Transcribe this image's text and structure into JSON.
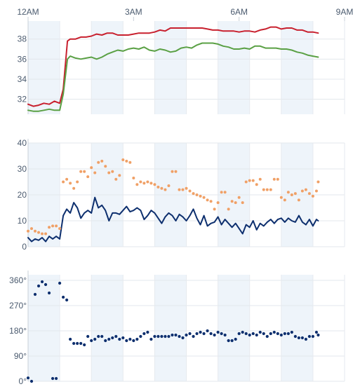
{
  "chart_data": [
    {
      "type": "line",
      "x_unit": "hours",
      "x_ticks": [
        {
          "x": 0,
          "label": "12AM"
        },
        {
          "x": 3,
          "label": "3AM"
        },
        {
          "x": 6,
          "label": "6AM"
        },
        {
          "x": 9,
          "label": "9AM"
        }
      ],
      "xlim": [
        0,
        9
      ],
      "ylim": [
        30.5,
        39.8
      ],
      "y_ticks": [
        {
          "v": 32,
          "label": "32"
        },
        {
          "v": 34,
          "label": "34"
        },
        {
          "v": 36,
          "label": "36"
        },
        {
          "v": 38,
          "label": "38"
        }
      ],
      "bands_hours": [
        [
          0,
          0.9
        ],
        [
          1.8,
          2.7
        ],
        [
          3.6,
          4.5
        ],
        [
          5.4,
          6.3
        ],
        [
          7.2,
          8.1
        ]
      ],
      "series": [
        {
          "color": "#c8202e",
          "x": [
            0,
            0.15,
            0.3,
            0.45,
            0.6,
            0.75,
            0.9,
            1.0,
            1.12,
            1.2,
            1.35,
            1.5,
            1.65,
            1.8,
            1.95,
            2.1,
            2.25,
            2.4,
            2.55,
            2.7,
            2.85,
            3.0,
            3.15,
            3.3,
            3.45,
            3.6,
            3.75,
            3.9,
            4.05,
            4.2,
            4.35,
            4.5,
            4.65,
            4.8,
            4.95,
            5.1,
            5.25,
            5.4,
            5.55,
            5.7,
            5.85,
            6.0,
            6.15,
            6.3,
            6.45,
            6.6,
            6.75,
            6.9,
            7.05,
            7.2,
            7.35,
            7.5,
            7.65,
            7.8,
            7.95,
            8.1,
            8.25
          ],
          "values": [
            31.5,
            31.3,
            31.4,
            31.6,
            31.5,
            31.8,
            31.6,
            33.0,
            37.8,
            38.0,
            38.0,
            38.2,
            38.2,
            38.3,
            38.5,
            38.4,
            38.6,
            38.6,
            38.4,
            38.4,
            38.4,
            38.5,
            38.6,
            38.6,
            38.6,
            38.7,
            38.9,
            38.8,
            39.1,
            39.1,
            39.1,
            39.1,
            39.1,
            39.1,
            39.1,
            39.0,
            38.9,
            38.9,
            38.8,
            38.8,
            38.8,
            38.7,
            38.8,
            38.8,
            38.7,
            38.9,
            39.0,
            39.2,
            39.2,
            39.0,
            39.1,
            39.1,
            38.9,
            38.9,
            38.7,
            38.7,
            38.6
          ]
        },
        {
          "color": "#5aa044",
          "x": [
            0,
            0.15,
            0.3,
            0.45,
            0.6,
            0.75,
            0.9,
            1.0,
            1.12,
            1.2,
            1.35,
            1.5,
            1.65,
            1.8,
            1.95,
            2.1,
            2.25,
            2.4,
            2.55,
            2.7,
            2.85,
            3.0,
            3.15,
            3.3,
            3.45,
            3.6,
            3.75,
            3.9,
            4.05,
            4.2,
            4.35,
            4.5,
            4.65,
            4.8,
            4.95,
            5.1,
            5.25,
            5.4,
            5.55,
            5.7,
            5.85,
            6.0,
            6.15,
            6.3,
            6.45,
            6.6,
            6.75,
            6.9,
            7.05,
            7.2,
            7.35,
            7.5,
            7.65,
            7.8,
            7.95,
            8.1,
            8.25
          ],
          "values": [
            30.9,
            30.8,
            30.8,
            30.9,
            31.0,
            30.9,
            30.9,
            32.5,
            36.0,
            36.3,
            36.1,
            36.0,
            36.1,
            36.2,
            36.0,
            36.2,
            36.5,
            36.7,
            36.9,
            36.8,
            37.0,
            37.1,
            37.0,
            37.2,
            36.9,
            36.8,
            37.0,
            36.9,
            36.7,
            36.8,
            37.1,
            37.2,
            37.1,
            37.4,
            37.6,
            37.6,
            37.6,
            37.5,
            37.3,
            37.2,
            37.0,
            37.0,
            37.1,
            37.0,
            37.3,
            37.3,
            37.1,
            37.1,
            37.1,
            37.0,
            37.0,
            36.9,
            36.7,
            36.6,
            36.4,
            36.3,
            36.2
          ]
        }
      ]
    },
    {
      "type": "line",
      "x_unit": "hours",
      "xlim": [
        0,
        9
      ],
      "ylim": [
        0,
        40
      ],
      "y_ticks": [
        {
          "v": 0,
          "label": "0"
        },
        {
          "v": 10,
          "label": "10"
        },
        {
          "v": 20,
          "label": "20"
        },
        {
          "v": 30,
          "label": "30"
        },
        {
          "v": 40,
          "label": "40"
        }
      ],
      "bands_hours": [
        [
          0,
          0.9
        ],
        [
          1.8,
          2.7
        ],
        [
          3.6,
          4.5
        ],
        [
          5.4,
          6.3
        ],
        [
          7.2,
          8.1
        ]
      ],
      "series": [
        {
          "color": "#0d2f6e",
          "style": "line",
          "x": [
            0,
            0.1,
            0.2,
            0.3,
            0.4,
            0.5,
            0.6,
            0.7,
            0.8,
            0.9,
            1.0,
            1.1,
            1.2,
            1.3,
            1.4,
            1.5,
            1.6,
            1.7,
            1.8,
            1.9,
            2.0,
            2.1,
            2.2,
            2.3,
            2.4,
            2.5,
            2.6,
            2.7,
            2.8,
            2.9,
            3.0,
            3.1,
            3.2,
            3.3,
            3.4,
            3.5,
            3.6,
            3.7,
            3.8,
            3.9,
            4.0,
            4.1,
            4.2,
            4.3,
            4.4,
            4.5,
            4.6,
            4.7,
            4.8,
            4.9,
            5.0,
            5.1,
            5.2,
            5.3,
            5.4,
            5.5,
            5.6,
            5.7,
            5.8,
            5.9,
            6.0,
            6.1,
            6.2,
            6.3,
            6.4,
            6.5,
            6.6,
            6.7,
            6.8,
            6.9,
            7.0,
            7.1,
            7.2,
            7.3,
            7.4,
            7.5,
            7.6,
            7.7,
            7.8,
            7.9,
            8.0,
            8.1,
            8.2,
            8.25
          ],
          "values": [
            3.5,
            2.0,
            3.0,
            2.5,
            3.5,
            2.0,
            4.0,
            3.0,
            4.0,
            3.0,
            12.0,
            14.5,
            13.0,
            17.0,
            15.0,
            11.0,
            13.0,
            14.0,
            13.0,
            19.0,
            15.0,
            16.0,
            14.0,
            10.0,
            13.0,
            13.0,
            12.5,
            14.0,
            15.5,
            13.5,
            14.0,
            15.0,
            14.0,
            10.5,
            12.0,
            14.0,
            13.0,
            11.0,
            9.0,
            11.5,
            13.0,
            12.0,
            10.0,
            12.5,
            11.5,
            10.0,
            12.0,
            14.5,
            11.0,
            8.5,
            12.0,
            8.0,
            9.0,
            9.5,
            11.5,
            8.5,
            10.5,
            9.0,
            7.5,
            9.0,
            7.0,
            5.0,
            8.5,
            7.5,
            10.0,
            6.5,
            9.0,
            8.0,
            9.5,
            10.5,
            9.0,
            10.5,
            11.0,
            9.5,
            11.0,
            10.0,
            9.5,
            12.0,
            9.5,
            8.5,
            10.5,
            8.0,
            10.5,
            10.0
          ]
        },
        {
          "color": "#f0a066",
          "style": "dots",
          "x": [
            0,
            0.1,
            0.2,
            0.3,
            0.4,
            0.5,
            0.6,
            0.7,
            0.8,
            0.9,
            1.0,
            1.1,
            1.2,
            1.3,
            1.4,
            1.5,
            1.6,
            1.7,
            1.8,
            1.9,
            2.0,
            2.1,
            2.2,
            2.3,
            2.4,
            2.5,
            2.6,
            2.7,
            2.8,
            2.9,
            3.0,
            3.1,
            3.2,
            3.3,
            3.4,
            3.5,
            3.6,
            3.7,
            3.8,
            3.9,
            4.0,
            4.1,
            4.2,
            4.3,
            4.4,
            4.5,
            4.6,
            4.7,
            4.8,
            4.9,
            5.0,
            5.1,
            5.2,
            5.3,
            5.4,
            5.5,
            5.6,
            5.7,
            5.8,
            5.9,
            6.0,
            6.1,
            6.2,
            6.3,
            6.4,
            6.5,
            6.6,
            6.7,
            6.8,
            6.9,
            7.0,
            7.1,
            7.2,
            7.3,
            7.4,
            7.5,
            7.6,
            7.7,
            7.8,
            7.9,
            8.0,
            8.1,
            8.2,
            8.25
          ],
          "values": [
            6.0,
            7.0,
            6.0,
            5.5,
            5.0,
            5.0,
            7.5,
            8.0,
            8.0,
            7.0,
            25.0,
            26.0,
            24.5,
            22.5,
            25.0,
            29.0,
            29.0,
            27.0,
            30.5,
            28.5,
            32.5,
            33.0,
            31.0,
            28.5,
            29.0,
            26.0,
            27.5,
            33.5,
            33.0,
            32.5,
            26.5,
            24.0,
            25.0,
            24.5,
            25.0,
            24.5,
            24.0,
            23.0,
            22.5,
            22.0,
            23.5,
            29.0,
            29.0,
            22.0,
            22.0,
            22.5,
            21.5,
            20.5,
            20.0,
            19.5,
            19.0,
            18.0,
            17.5,
            14.5,
            17.0,
            21.0,
            21.0,
            14.5,
            17.5,
            17.0,
            19.0,
            17.0,
            25.0,
            25.5,
            25.5,
            24.0,
            26.0,
            22.0,
            22.0,
            22.0,
            26.0,
            26.0,
            19.0,
            18.0,
            21.0,
            20.0,
            20.5,
            18.0,
            21.5,
            22.0,
            20.5,
            19.5,
            21.5,
            25.0
          ]
        }
      ]
    },
    {
      "type": "scatter",
      "x_unit": "hours",
      "xlim": [
        0,
        9
      ],
      "ylim": [
        0,
        380
      ],
      "y_ticks": [
        {
          "v": 0,
          "label": "0°"
        },
        {
          "v": 90,
          "label": "90°"
        },
        {
          "v": 180,
          "label": "180°"
        },
        {
          "v": 270,
          "label": "270°"
        },
        {
          "v": 360,
          "label": "360°"
        }
      ],
      "bands_hours": [
        [
          0,
          0.9
        ],
        [
          1.8,
          2.7
        ],
        [
          3.6,
          4.5
        ],
        [
          5.4,
          6.3
        ],
        [
          7.2,
          8.1
        ]
      ],
      "series": [
        {
          "color": "#0d2f6e",
          "x": [
            0.0,
            0.1,
            0.2,
            0.3,
            0.4,
            0.5,
            0.6,
            0.7,
            0.8,
            0.9,
            1.0,
            1.1,
            1.2,
            1.3,
            1.4,
            1.5,
            1.6,
            1.7,
            1.8,
            1.9,
            2.0,
            2.1,
            2.2,
            2.3,
            2.4,
            2.5,
            2.6,
            2.7,
            2.8,
            2.9,
            3.0,
            3.1,
            3.2,
            3.3,
            3.4,
            3.5,
            3.6,
            3.7,
            3.8,
            3.9,
            4.0,
            4.1,
            4.2,
            4.3,
            4.4,
            4.5,
            4.6,
            4.7,
            4.8,
            4.9,
            5.0,
            5.1,
            5.2,
            5.3,
            5.4,
            5.5,
            5.6,
            5.7,
            5.8,
            5.9,
            6.0,
            6.1,
            6.2,
            6.3,
            6.4,
            6.5,
            6.6,
            6.7,
            6.8,
            6.9,
            7.0,
            7.1,
            7.2,
            7.3,
            7.4,
            7.5,
            7.6,
            7.7,
            7.8,
            7.9,
            8.0,
            8.1,
            8.2,
            8.25
          ],
          "values": [
            12,
            0,
            310,
            340,
            355,
            345,
            315,
            10,
            10,
            350,
            300,
            290,
            150,
            135,
            135,
            135,
            130,
            160,
            145,
            150,
            160,
            160,
            145,
            150,
            155,
            160,
            150,
            155,
            145,
            150,
            145,
            150,
            160,
            170,
            175,
            150,
            160,
            160,
            160,
            160,
            160,
            165,
            165,
            160,
            155,
            165,
            170,
            160,
            170,
            175,
            170,
            180,
            170,
            165,
            175,
            170,
            165,
            145,
            145,
            150,
            170,
            175,
            170,
            165,
            170,
            165,
            175,
            170,
            160,
            170,
            175,
            170,
            165,
            170,
            170,
            175,
            160,
            155,
            155,
            150,
            160,
            160,
            175,
            165
          ]
        }
      ]
    }
  ]
}
